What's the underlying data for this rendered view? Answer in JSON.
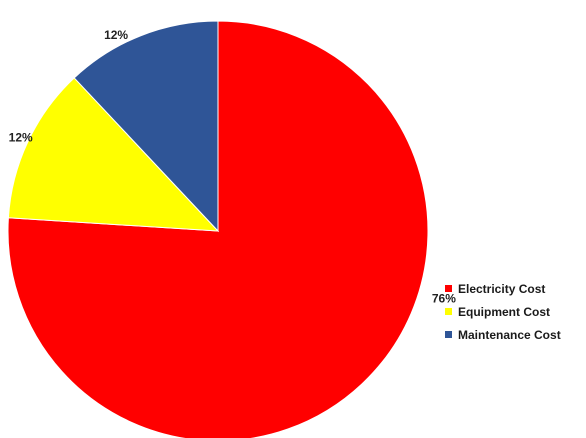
{
  "chart_data": {
    "type": "pie",
    "title": "",
    "categories": [
      "Electricity Cost",
      "Equipment Cost",
      "Maintenance Cost"
    ],
    "values": [
      76,
      12,
      12
    ],
    "data_labels": [
      "76%",
      "12%",
      "12%"
    ],
    "colors": [
      "#ff0000",
      "#ffff00",
      "#2f5597"
    ],
    "start_angle_deg": 0,
    "direction": "clockwise",
    "legend_position": "right"
  }
}
